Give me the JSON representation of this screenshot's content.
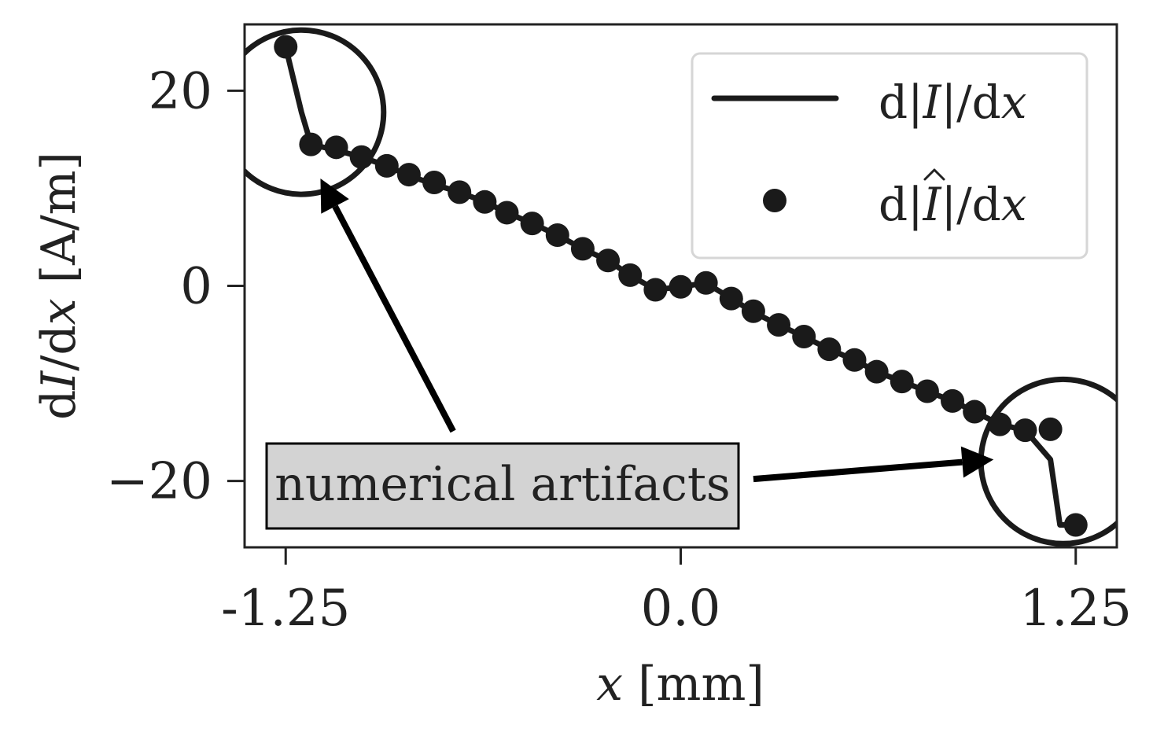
{
  "chart_data": {
    "type": "line",
    "xlabel_var": "x",
    "xlabel_unit": "[mm]",
    "ylabel_prefix": "d",
    "ylabel_var": "I",
    "ylabel_mid": "/d",
    "ylabel_var2": "x",
    "ylabel_unit": "[A/m]",
    "xlim": [
      -1.38,
      1.38
    ],
    "ylim": [
      -26.8,
      26.8
    ],
    "x_ticks": [
      -1.25,
      0.0,
      1.25
    ],
    "x_tick_labels": [
      "-1.25",
      "0.0",
      "1.25"
    ],
    "y_ticks": [
      20,
      0,
      -20
    ],
    "y_tick_labels": [
      "20",
      "0",
      "−20"
    ],
    "grid": false,
    "legend_placement": "top-right",
    "series": [
      {
        "name_prefix": "d|",
        "name_var": "I",
        "name_suffix": "|/d",
        "name_var2": "x",
        "hat": false,
        "style": "line",
        "color": "#1a1a1a",
        "x": [
          -1.25,
          -1.2,
          -1.17,
          -1.09,
          -1.01,
          -0.93,
          -0.86,
          -0.78,
          -0.7,
          -0.62,
          -0.55,
          -0.47,
          -0.39,
          -0.31,
          -0.23,
          -0.16,
          -0.08,
          0.0,
          0.08,
          0.16,
          0.23,
          0.31,
          0.39,
          0.47,
          0.55,
          0.62,
          0.7,
          0.78,
          0.86,
          0.93,
          1.01,
          1.09,
          1.17,
          1.2,
          1.25
        ],
        "y": [
          24.5,
          17.8,
          14.5,
          13.9,
          13.2,
          12.3,
          11.3,
          10.4,
          9.6,
          8.6,
          7.5,
          6.4,
          5.2,
          3.8,
          2.6,
          1.1,
          -0.4,
          -0.1,
          0.3,
          -1.3,
          -2.7,
          -4.0,
          -5.2,
          -6.5,
          -7.6,
          -8.8,
          -9.8,
          -10.8,
          -11.8,
          -12.9,
          -14.2,
          -14.8,
          -17.8,
          -24.5,
          -24.5
        ]
      },
      {
        "name_prefix": "d|",
        "name_var": "I",
        "name_suffix": "|/d",
        "name_var2": "x",
        "hat": true,
        "style": "scatter",
        "color": "#1a1a1a",
        "x": [
          -1.25,
          -1.17,
          -1.09,
          -1.01,
          -0.93,
          -0.86,
          -0.78,
          -0.7,
          -0.62,
          -0.55,
          -0.47,
          -0.39,
          -0.31,
          -0.23,
          -0.16,
          -0.08,
          0.0,
          0.08,
          0.16,
          0.23,
          0.31,
          0.39,
          0.47,
          0.55,
          0.62,
          0.7,
          0.78,
          0.86,
          0.93,
          1.01,
          1.09,
          1.17,
          1.25
        ],
        "y": [
          24.5,
          14.5,
          14.2,
          13.2,
          12.3,
          11.4,
          10.6,
          9.6,
          8.6,
          7.5,
          6.4,
          5.2,
          3.8,
          2.6,
          1.1,
          -0.4,
          -0.1,
          0.3,
          -1.3,
          -2.6,
          -4.0,
          -5.2,
          -6.5,
          -7.6,
          -8.8,
          -9.8,
          -10.8,
          -11.8,
          -12.9,
          -14.2,
          -14.8,
          -14.7,
          -24.5
        ]
      }
    ],
    "annotation": {
      "text": "numerical artifacts",
      "box_fill": "#d3d3d3",
      "circles": [
        {
          "cx": -1.2,
          "cy": 17.8,
          "r_x": 0.26
        },
        {
          "cx": 1.21,
          "cy": -18.0,
          "r_x": 0.26
        }
      ],
      "arrows": [
        {
          "from": [
            -0.72,
            -14.9
          ],
          "to": [
            -1.14,
            11.0
          ]
        },
        {
          "from": [
            0.23,
            -19.8
          ],
          "to": [
            0.99,
            -17.8
          ]
        }
      ]
    }
  }
}
